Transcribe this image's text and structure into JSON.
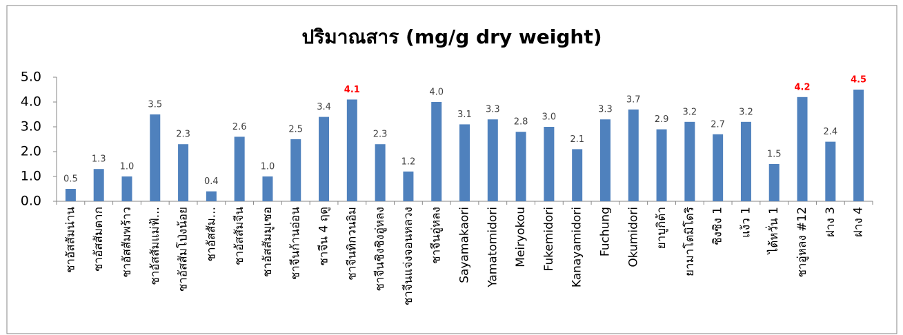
{
  "chart_data": {
    "type": "bar",
    "title": "ปริมาณสาร   (mg/g dry weight)",
    "categories": [
      "ชาอัสสัมน่าน",
      "ชาอัสสัมตาก",
      "ชาอัสสัมพร้าว",
      "ชาอัสสัมแม่ฟ้...",
      "ชาอัสสัมโป่งน้อย",
      "ชาอัสสัม...",
      "ชาอัสสัมจีน",
      "ชาอัสสัมมูเซอ",
      "ชาจีนก้านอ่อน",
      "ชาจีน 4 ฤดู",
      "ชาจีนทิกวนอิม",
      "ชาจีนชิงชิงอู่หลง",
      "ชาจีนแจ่งจอนหลวง",
      "ชาจีนอู่หลง",
      "Sayamakaori",
      "Yamatomidori",
      "Meiryokou",
      "Fukemidori",
      "Kanayamidori",
      "Fuchung",
      "Okumidori",
      "ยาบูกิต้า",
      "ยามาโตมิโดริ",
      "ชิงชิง 1",
      "แง้ว 1",
      "ไต้หวั่น 1",
      "ชาอู่หลง #12",
      "ฝาง 3",
      "ฝาง 4"
    ],
    "values": [
      0.5,
      1.3,
      1.0,
      3.5,
      2.3,
      0.4,
      2.6,
      1.0,
      2.5,
      3.4,
      4.1,
      2.3,
      1.2,
      4.0,
      3.1,
      3.3,
      2.8,
      3.0,
      2.1,
      3.3,
      3.7,
      2.9,
      3.2,
      2.7,
      3.2,
      1.5,
      4.2,
      2.4,
      4.5
    ],
    "value_labels": [
      "0.5",
      "1.3",
      "1.0",
      "3.5",
      "2.3",
      "0.4",
      "2.6",
      "1.0",
      "2.5",
      "3.4",
      "4.1",
      "2.3",
      "1.2",
      "4.0",
      "3.1",
      "3.3",
      "2.8",
      "3.0",
      "2.1",
      "3.3",
      "3.7",
      "2.9",
      "3.2",
      "2.7",
      "3.2",
      "1.5",
      "4.2",
      "2.4",
      "4.5"
    ],
    "value_label_colors": [
      "#404040",
      "#404040",
      "#404040",
      "#404040",
      "#404040",
      "#404040",
      "#404040",
      "#404040",
      "#404040",
      "#404040",
      "#ff0000",
      "#404040",
      "#404040",
      "#404040",
      "#404040",
      "#404040",
      "#404040",
      "#404040",
      "#404040",
      "#404040",
      "#404040",
      "#404040",
      "#404040",
      "#404040",
      "#404040",
      "#404040",
      "#ff0000",
      "#404040",
      "#ff0000"
    ],
    "color": "#4f81bd",
    "ylim": [
      0,
      5
    ],
    "yticks": [
      {
        "value": 0,
        "label": "0.0"
      },
      {
        "value": 1,
        "label": "1.0"
      },
      {
        "value": 2,
        "label": "2.0"
      },
      {
        "value": 3,
        "label": "3.0"
      },
      {
        "value": 4,
        "label": "4.0"
      },
      {
        "value": 5,
        "label": "5.0"
      }
    ],
    "grid": false
  }
}
